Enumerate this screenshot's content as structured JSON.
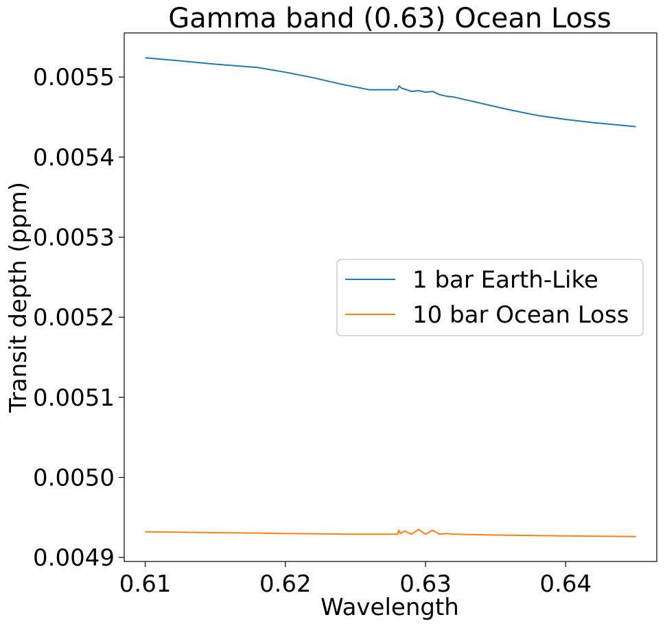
{
  "chart_data": {
    "type": "line",
    "title": "Gamma band (0.63) Ocean Loss",
    "xlabel": "Wavelength",
    "ylabel": "Transit depth (ppm)",
    "xlim": [
      0.6085,
      0.6465
    ],
    "ylim": [
      0.004895,
      0.005555
    ],
    "xticks": [
      0.61,
      0.62,
      0.63,
      0.64
    ],
    "xtick_labels": [
      "0.61",
      "0.62",
      "0.63",
      "0.64"
    ],
    "yticks": [
      0.0049,
      0.005,
      0.0051,
      0.0052,
      0.0053,
      0.0054,
      0.0055
    ],
    "ytick_labels": [
      "0.0049",
      "0.0050",
      "0.0051",
      "0.0052",
      "0.0053",
      "0.0054",
      "0.0055"
    ],
    "grid": false,
    "legend_position": "center-right",
    "series": [
      {
        "name": "1 bar Earth-Like",
        "color": "#1f77b4",
        "x": [
          0.61,
          0.612,
          0.615,
          0.618,
          0.62,
          0.622,
          0.624,
          0.626,
          0.628,
          0.6281,
          0.6283,
          0.6285,
          0.629,
          0.6295,
          0.63,
          0.6305,
          0.631,
          0.6315,
          0.632,
          0.634,
          0.636,
          0.638,
          0.64,
          0.642,
          0.645
        ],
        "y": [
          0.005524,
          0.005521,
          0.005516,
          0.005512,
          0.005506,
          0.005499,
          0.005491,
          0.005484,
          0.005484,
          0.005489,
          0.005486,
          0.005485,
          0.005482,
          0.005483,
          0.005481,
          0.005482,
          0.005478,
          0.005476,
          0.005475,
          0.005467,
          0.005459,
          0.005452,
          0.005447,
          0.005443,
          0.005438
        ]
      },
      {
        "name": "10 bar Ocean Loss",
        "color": "#ff7f0e",
        "x": [
          0.61,
          0.615,
          0.62,
          0.625,
          0.628,
          0.6281,
          0.6282,
          0.6285,
          0.629,
          0.6295,
          0.63,
          0.6305,
          0.631,
          0.6315,
          0.632,
          0.635,
          0.64,
          0.645
        ],
        "y": [
          0.004932,
          0.004931,
          0.00493,
          0.004929,
          0.004929,
          0.004934,
          0.00493,
          0.004933,
          0.004929,
          0.004935,
          0.004929,
          0.004934,
          0.004929,
          0.00493,
          0.004929,
          0.004928,
          0.004927,
          0.004926
        ]
      }
    ]
  }
}
